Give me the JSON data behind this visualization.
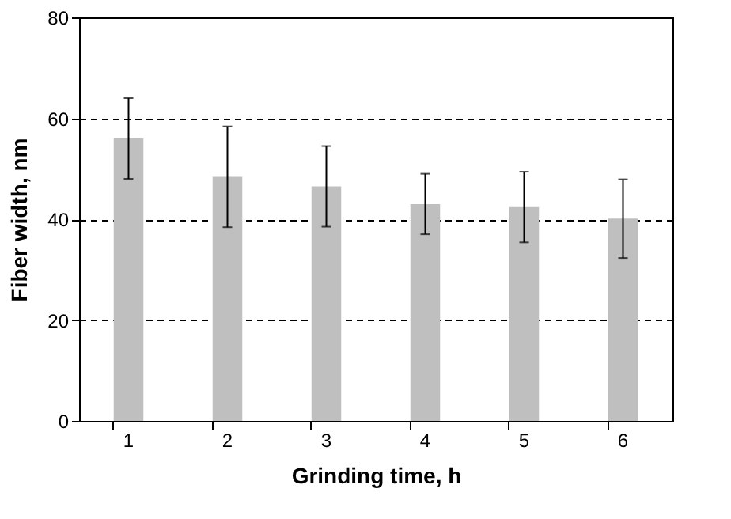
{
  "chart_data": {
    "type": "bar",
    "xlabel": "Grinding time, h",
    "ylabel": "Fiber width, nm",
    "categories": [
      "1",
      "2",
      "3",
      "4",
      "5",
      "6"
    ],
    "values": [
      56,
      48.4,
      46.5,
      43,
      42.4,
      40.1
    ],
    "errors": [
      8,
      10,
      8,
      6,
      7,
      7.8
    ],
    "color": "#bfbfbf",
    "ylim": [
      0,
      80
    ],
    "yticks": [
      0,
      20,
      40,
      60,
      80
    ],
    "grid": "y"
  }
}
